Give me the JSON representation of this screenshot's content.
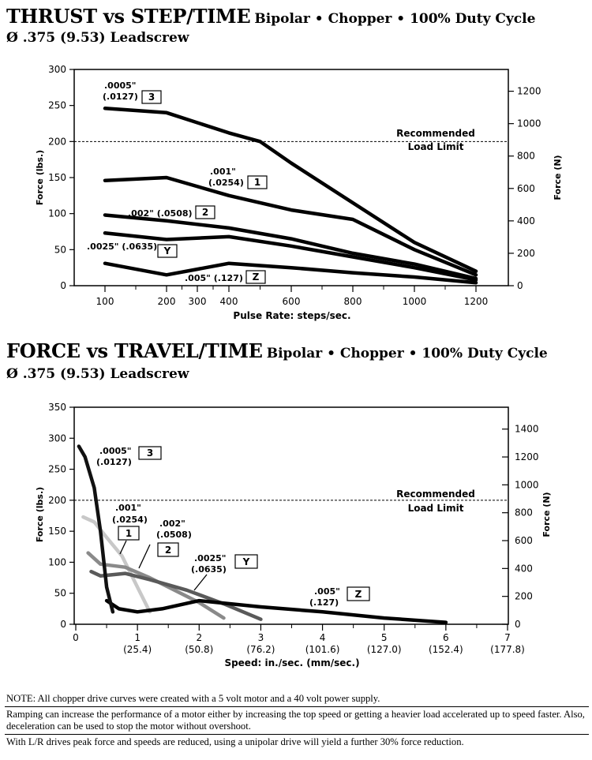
{
  "chart_data": [
    {
      "type": "line",
      "title": "THRUST vs STEP/TIME",
      "subtitle": "Bipolar • Chopper • 100% Duty Cycle",
      "title_line2": "Ø .375 (9.53) Leadscrew",
      "xlabel": "Pulse Rate:  steps/sec.",
      "ylabel": "Force (lbs.)",
      "ylabel_right": "Force (N)",
      "x_ticks": [
        100,
        200,
        300,
        400,
        600,
        800,
        1000,
        1200
      ],
      "x_tick_labels": [
        "100",
        "200",
        "300",
        "400",
        "600",
        "800",
        "1000",
        "1200"
      ],
      "y_ticks": [
        0,
        50,
        100,
        150,
        200,
        250,
        300
      ],
      "y_tick_labels": [
        "0",
        "50",
        "100",
        "150",
        "200",
        "250",
        "300"
      ],
      "y_right_ticks": [
        0,
        200,
        400,
        600,
        800,
        1000,
        1200
      ],
      "y_right_tick_labels": [
        "0",
        "200",
        "400",
        "600",
        "800",
        "1000",
        "1200"
      ],
      "ylim": [
        0,
        300
      ],
      "grid": false,
      "reference_line": {
        "y": 200,
        "label_line1": "Recommended",
        "label_line2": "Load Limit"
      },
      "series": [
        {
          "name": "3",
          "annotation": [
            ".0005\"",
            "(.0127)"
          ],
          "color": "#000000",
          "x": [
            100,
            200,
            400,
            500,
            600,
            800,
            1000,
            1200
          ],
          "y": [
            246,
            240,
            212,
            200,
            170,
            115,
            60,
            20
          ]
        },
        {
          "name": "1",
          "annotation": [
            ".001\"",
            "(.0254)"
          ],
          "color": "#000000",
          "x": [
            100,
            200,
            400,
            600,
            800,
            1000,
            1200
          ],
          "y": [
            146,
            150,
            125,
            105,
            92,
            50,
            15
          ]
        },
        {
          "name": "2",
          "annotation": [
            ".002\" (.0508)"
          ],
          "color": "#000000",
          "x": [
            100,
            200,
            400,
            600,
            800,
            1000,
            1200
          ],
          "y": [
            98,
            90,
            80,
            65,
            45,
            30,
            10
          ]
        },
        {
          "name": "Y",
          "annotation": [
            ".0025\" (.0635)"
          ],
          "color": "#000000",
          "x": [
            100,
            200,
            400,
            600,
            800,
            1000,
            1200
          ],
          "y": [
            73,
            64,
            68,
            55,
            40,
            25,
            8
          ]
        },
        {
          "name": "Z",
          "annotation": [
            ".005\" (.127)"
          ],
          "color": "#000000",
          "x": [
            100,
            200,
            400,
            600,
            800,
            1000,
            1200
          ],
          "y": [
            31,
            15,
            31,
            25,
            18,
            12,
            4
          ]
        }
      ]
    },
    {
      "type": "line",
      "title": "FORCE vs TRAVEL/TIME",
      "subtitle": "Bipolar • Chopper • 100% Duty Cycle",
      "title_line2": "Ø .375 (9.53) Leadscrew",
      "xlabel": "Speed:  in./sec. (mm/sec.)",
      "ylabel": "Force (lbs.)",
      "ylabel_right": "Force (N)",
      "x_ticks": [
        0,
        1,
        2,
        3,
        4,
        5,
        6,
        7
      ],
      "x_tick_labels": [
        "0",
        "1",
        "2",
        "3",
        "4",
        "5",
        "6",
        "7"
      ],
      "x_tick_sublabels": [
        "",
        "(25.4)",
        "(50.8)",
        "(76.2)",
        "(101.6)",
        "(127.0)",
        "(152.4)",
        "(177.8)"
      ],
      "y_ticks": [
        0,
        50,
        100,
        150,
        200,
        250,
        300,
        350
      ],
      "y_tick_labels": [
        "0",
        "50",
        "100",
        "150",
        "200",
        "250",
        "300",
        "350"
      ],
      "y_right_ticks": [
        0,
        200,
        400,
        600,
        800,
        1000,
        1200,
        1400
      ],
      "y_right_tick_labels": [
        "0",
        "200",
        "400",
        "600",
        "800",
        "1000",
        "1200",
        "1400"
      ],
      "xlim": [
        0,
        7
      ],
      "ylim": [
        0,
        350
      ],
      "grid": false,
      "reference_line": {
        "y": 200,
        "label_line1": "Recommended",
        "label_line2": "Load Limit"
      },
      "series": [
        {
          "name": "3",
          "annotation": [
            ".0005\"",
            "(.0127)"
          ],
          "color": "#111111",
          "x": [
            0.05,
            0.15,
            0.3,
            0.4,
            0.5,
            0.6
          ],
          "y": [
            287,
            270,
            220,
            150,
            60,
            20
          ]
        },
        {
          "name": "1",
          "annotation": [
            ".001\"",
            "(.0254)"
          ],
          "color": "#c8c8c8",
          "x": [
            0.12,
            0.3,
            0.5,
            0.75,
            1.0,
            1.2
          ],
          "y": [
            173,
            165,
            140,
            110,
            60,
            20
          ]
        },
        {
          "name": "2",
          "annotation": [
            ".002\"",
            "(.0508)"
          ],
          "color": "#8a8a8a",
          "x": [
            0.2,
            0.4,
            0.8,
            1.2,
            1.6,
            2.0,
            2.4
          ],
          "y": [
            115,
            97,
            92,
            75,
            55,
            35,
            10
          ]
        },
        {
          "name": "Y",
          "annotation": [
            ".0025\"",
            "(.0635)"
          ],
          "color": "#5a5a5a",
          "x": [
            0.25,
            0.4,
            0.8,
            1.2,
            1.8,
            2.4,
            3.0
          ],
          "y": [
            85,
            78,
            82,
            72,
            55,
            33,
            8
          ]
        },
        {
          "name": "Z",
          "annotation": [
            ".005\"",
            "(.127)"
          ],
          "color": "#000000",
          "x": [
            0.5,
            0.7,
            1.0,
            1.4,
            2.0,
            3.0,
            4.0,
            5.0,
            6.0
          ],
          "y": [
            38,
            25,
            20,
            25,
            38,
            28,
            20,
            10,
            3
          ]
        }
      ]
    }
  ],
  "notes": [
    "NOTE: All chopper drive curves were created with a 5 volt motor and a 40 volt power supply.",
    "Ramping can increase the performance of a motor either by increasing the top speed or getting a heavier load accelerated up to speed faster.  Also, deceleration can be used to stop the motor without overshoot.",
    "With L/R drives peak force and speeds are reduced, using a unipolar drive will yield a further 30% force reduction."
  ]
}
